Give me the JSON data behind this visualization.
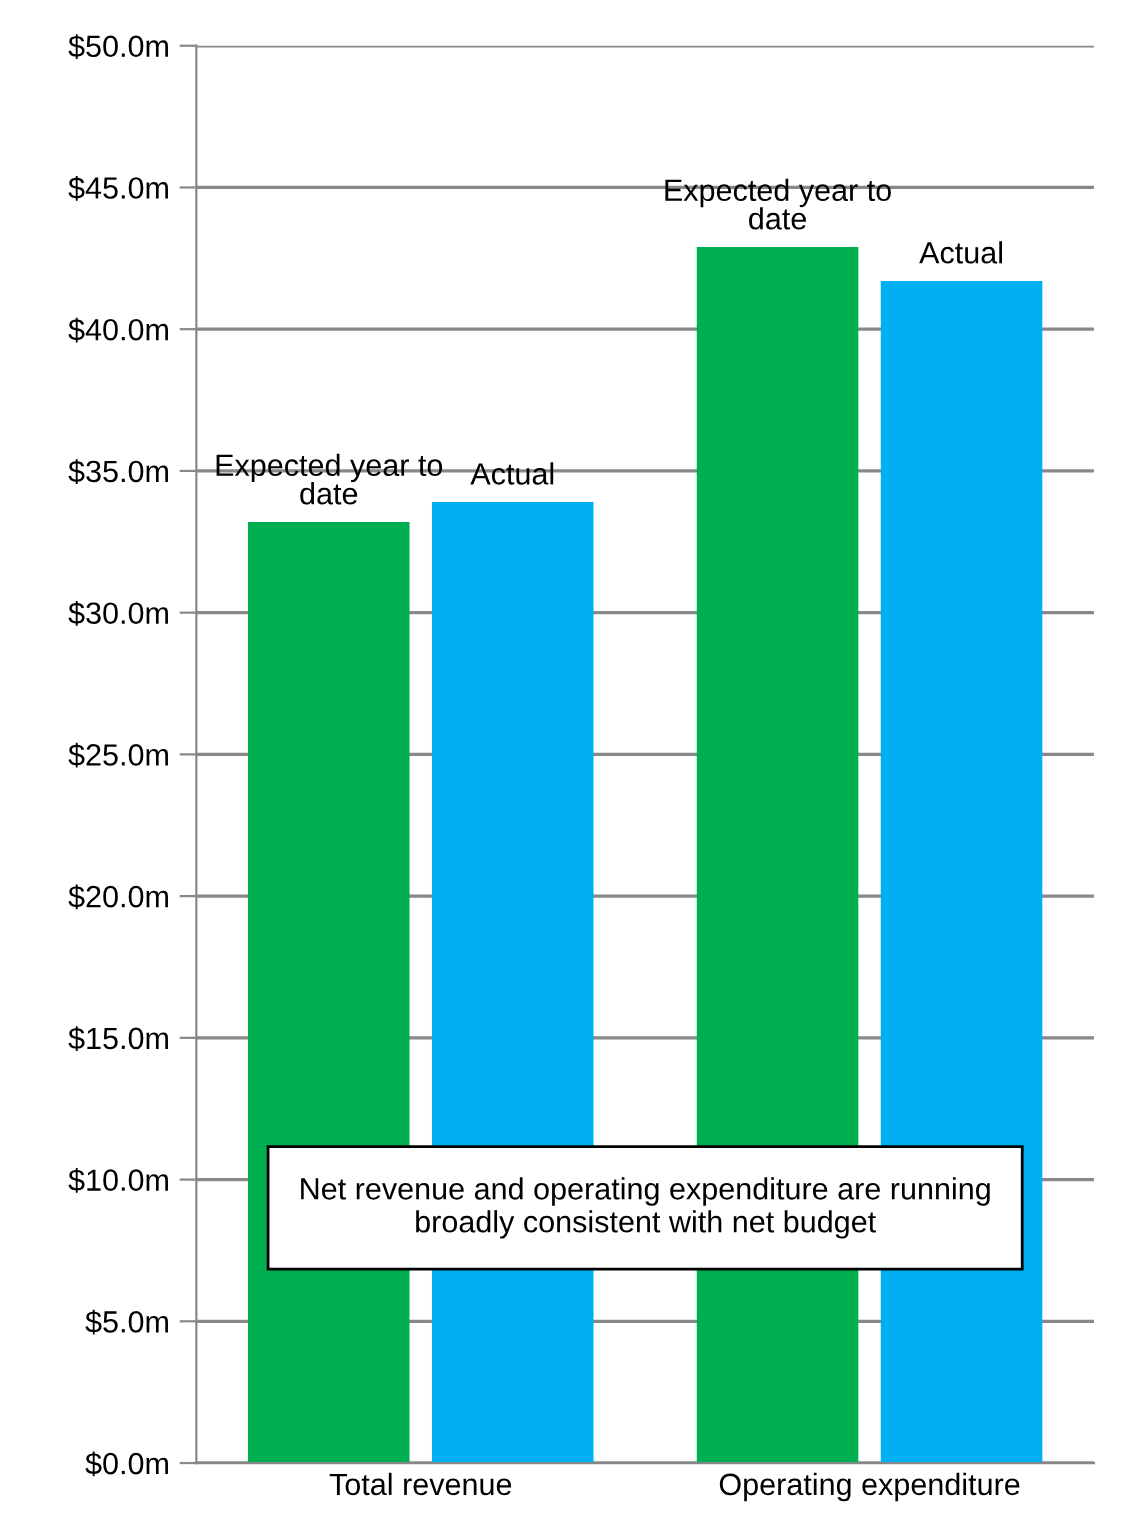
{
  "chart_data": {
    "type": "bar",
    "categories": [
      "Total revenue",
      "Operating expenditure"
    ],
    "series": [
      {
        "name": "Expected year to date",
        "color": "#00b050",
        "values": [
          33.2,
          42.9
        ]
      },
      {
        "name": "Actual",
        "color": "#00b0f0",
        "values": [
          33.9,
          41.7
        ]
      }
    ],
    "ylim": [
      0,
      50
    ],
    "yticks": [
      {
        "value": 0,
        "label": "$0.0m"
      },
      {
        "value": 5,
        "label": "$5.0m"
      },
      {
        "value": 10,
        "label": "$10.0m"
      },
      {
        "value": 15,
        "label": "$15.0m"
      },
      {
        "value": 20,
        "label": "$20.0m"
      },
      {
        "value": 25,
        "label": "$25.0m"
      },
      {
        "value": 30,
        "label": "$30.0m"
      },
      {
        "value": 35,
        "label": "$35.0m"
      },
      {
        "value": 40,
        "label": "$40.0m"
      },
      {
        "value": 45,
        "label": "$45.0m"
      },
      {
        "value": 50,
        "label": "$50.0m"
      }
    ],
    "grid": "y",
    "legend": false,
    "annotations": [
      "Net revenue and operating expenditure are running broadly consistent with net budget"
    ]
  }
}
